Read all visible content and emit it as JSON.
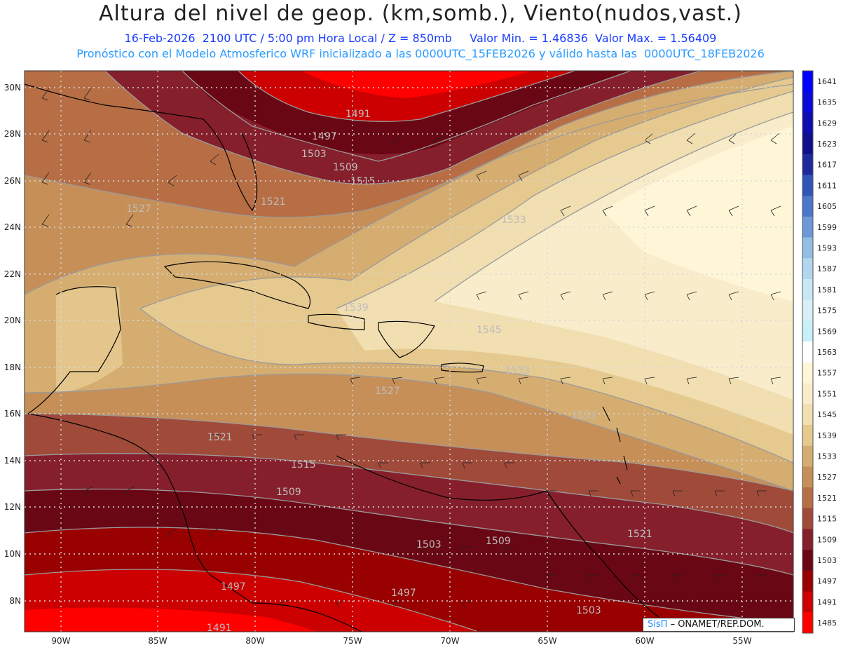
{
  "header": {
    "title": "Altura del nivel de geop. (km,somb.), Viento(nudos,vast.)",
    "line1": "16-Feb-2026  2100 UTC / 5:00 pm Hora Local / Z = 850mb     Valor Min. = 1.46836  Valor Max. = 1.56409",
    "line2": "Pronóstico con el Modelo Atmosferico WRF inicializado a las 0000UTC_15FEB2026 y válido hasta las  0000UTC_18FEB2026"
  },
  "axes": {
    "lon_labels": [
      "90W",
      "85W",
      "80W",
      "75W",
      "70W",
      "65W",
      "60W",
      "55W"
    ],
    "lat_labels": [
      "30N",
      "28N",
      "26N",
      "24N",
      "22N",
      "20N",
      "18N",
      "16N",
      "14N",
      "12N",
      "10N",
      "8N"
    ],
    "grid": "dotted"
  },
  "colorbar": {
    "levels": [
      "1641",
      "1635",
      "1629",
      "1623",
      "1617",
      "1611",
      "1605",
      "1599",
      "1593",
      "1587",
      "1581",
      "1575",
      "1569",
      "1563",
      "1557",
      "1551",
      "1545",
      "1539",
      "1533",
      "1527",
      "1521",
      "1515",
      "1509",
      "1503",
      "1497",
      "1491",
      "1485"
    ],
    "colors": [
      "#0000ff",
      "#0a0ad8",
      "#0e0eb0",
      "#10108c",
      "#1e2a9a",
      "#2f55b8",
      "#4a77c8",
      "#6d9ad6",
      "#92bde4",
      "#b3d6ee",
      "#c9e6f3",
      "#d9eff8",
      "#c7f0f8",
      "#ffffff",
      "#fff6d8",
      "#f8eccb",
      "#f1deb1",
      "#e5c98f",
      "#d6ad71",
      "#c78f58",
      "#b76e45",
      "#a04a3a",
      "#861f2c",
      "#6a0714",
      "#990000",
      "#cc0000",
      "#ff0000"
    ]
  },
  "contour_labels": [
    "1491",
    "1497",
    "1503",
    "1509",
    "1515",
    "1521",
    "1527",
    "1533",
    "1539",
    "1545",
    "1533",
    "1527",
    "1521",
    "1515",
    "1509",
    "1503",
    "1509",
    "1521",
    "1503",
    "1497",
    "1497",
    "1491",
    "1533"
  ],
  "credit": {
    "logo": "SisΠ",
    "text": "– ONAMET/REP.DOM."
  }
}
